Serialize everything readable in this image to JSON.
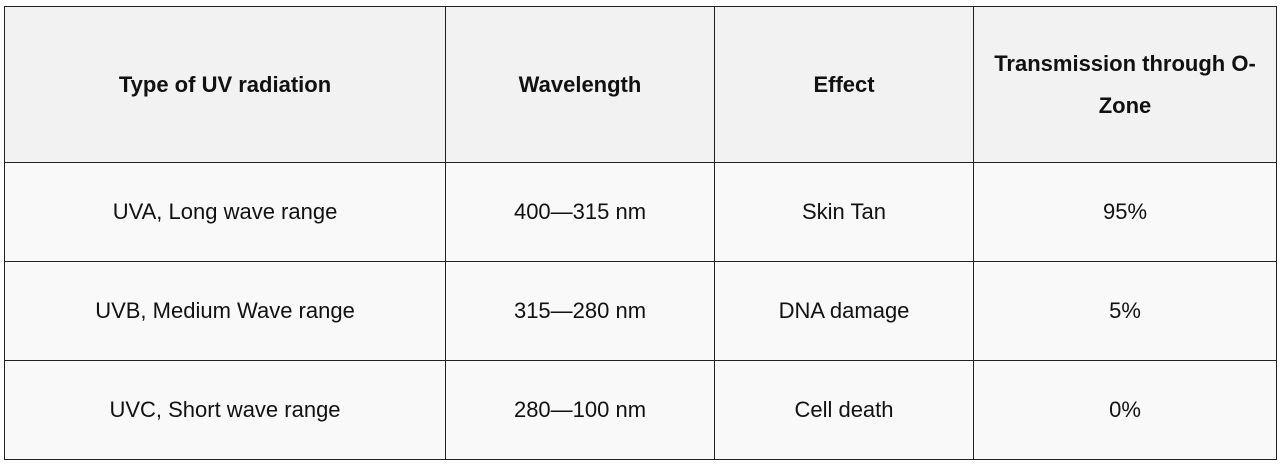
{
  "table": {
    "header": [
      "Type of UV radiation",
      "Wavelength",
      "Effect",
      "Transmission through O-Zone"
    ],
    "rows": [
      [
        "UVA, Long wave range",
        "400—315 nm",
        "Skin Tan",
        "95%"
      ],
      [
        "UVB, Medium Wave range",
        "315—280 nm",
        "DNA damage",
        "5%"
      ],
      [
        "UVC, Short wave range",
        "280—100 nm",
        "Cell death",
        "0%"
      ]
    ]
  }
}
